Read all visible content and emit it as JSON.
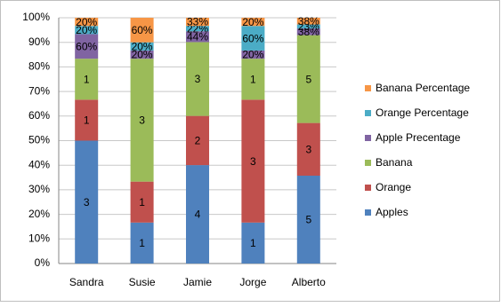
{
  "chart_data": {
    "type": "bar",
    "stacking": "percent",
    "categories": [
      "Sandra",
      "Susie",
      "Jamie",
      "Jorge",
      "Alberto"
    ],
    "series": [
      {
        "name": "Apples",
        "color": "#4f81bd",
        "values": [
          3,
          1,
          4,
          1,
          5
        ]
      },
      {
        "name": "Orange",
        "color": "#c0504d",
        "values": [
          1,
          1,
          2,
          3,
          3
        ]
      },
      {
        "name": "Banana",
        "color": "#9bbb59",
        "values": [
          1,
          3,
          3,
          1,
          5
        ]
      },
      {
        "name": "Apple Precentage",
        "color": "#8064a2",
        "values": [
          0.6,
          0.2,
          0.44,
          0.2,
          0.38
        ],
        "value_labels": [
          "60%",
          "20%",
          "44%",
          "20%",
          "38%"
        ]
      },
      {
        "name": "Orange Percentage",
        "color": "#4bacc6",
        "values": [
          0.2,
          0.2,
          0.22,
          0.6,
          0.23
        ],
        "value_labels": [
          "20%",
          "20%",
          "22%",
          "60%",
          "23%"
        ]
      },
      {
        "name": "Banana Percentage",
        "color": "#f79646",
        "values": [
          0.2,
          0.6,
          0.33,
          0.2,
          0.38
        ],
        "value_labels": [
          "20%",
          "60%",
          "33%",
          "20%",
          "38%"
        ]
      }
    ],
    "ylim": [
      0,
      100
    ],
    "yticks": [
      {
        "value": 0,
        "label": "0%"
      },
      {
        "value": 10,
        "label": "10%"
      },
      {
        "value": 20,
        "label": "20%"
      },
      {
        "value": 30,
        "label": "30%"
      },
      {
        "value": 40,
        "label": "40%"
      },
      {
        "value": 50,
        "label": "50%"
      },
      {
        "value": 60,
        "label": "60%"
      },
      {
        "value": 70,
        "label": "70%"
      },
      {
        "value": 80,
        "label": "80%"
      },
      {
        "value": 90,
        "label": "90%"
      },
      {
        "value": 100,
        "label": "100%"
      }
    ],
    "grid": true,
    "legend": "right"
  }
}
